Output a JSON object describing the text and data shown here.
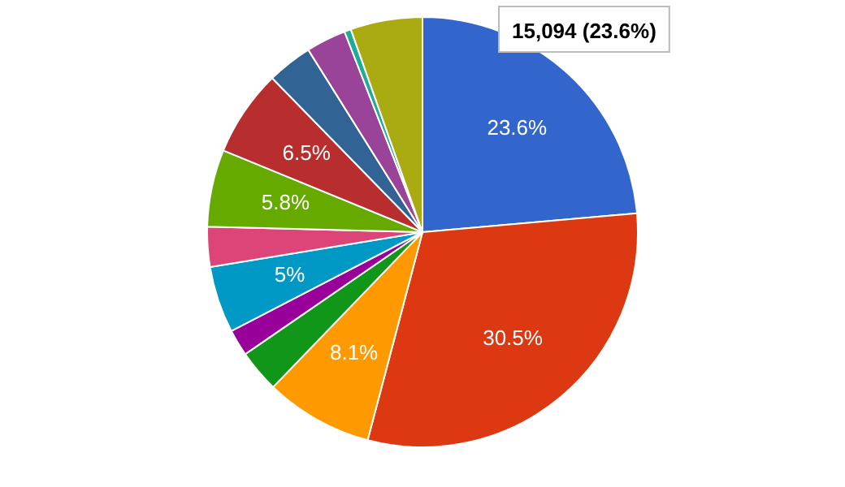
{
  "chart_data": {
    "type": "pie",
    "categories": [
      null,
      null,
      null,
      null,
      null,
      null,
      null,
      null,
      null,
      null,
      null,
      null,
      null
    ],
    "values": [
      23.6,
      30.5,
      8.1,
      3.2,
      2.0,
      5,
      3.0,
      5.8,
      6.5,
      3.4,
      3.0,
      0.5,
      5.4
    ],
    "colors": [
      "#3366cc",
      "#dc3912",
      "#ff9900",
      "#109618",
      "#990099",
      "#0099c6",
      "#dd4477",
      "#66aa00",
      "#b82e2e",
      "#316395",
      "#994499",
      "#22aa99",
      "#aaaa11"
    ],
    "value_labels": [
      "23.6%",
      "30.5%",
      "8.1%",
      null,
      null,
      "5%",
      null,
      "5.8%",
      "6.5%",
      null,
      null,
      null,
      null
    ],
    "annotations": [
      "15,094 (23.6%)"
    ],
    "legend": false
  }
}
